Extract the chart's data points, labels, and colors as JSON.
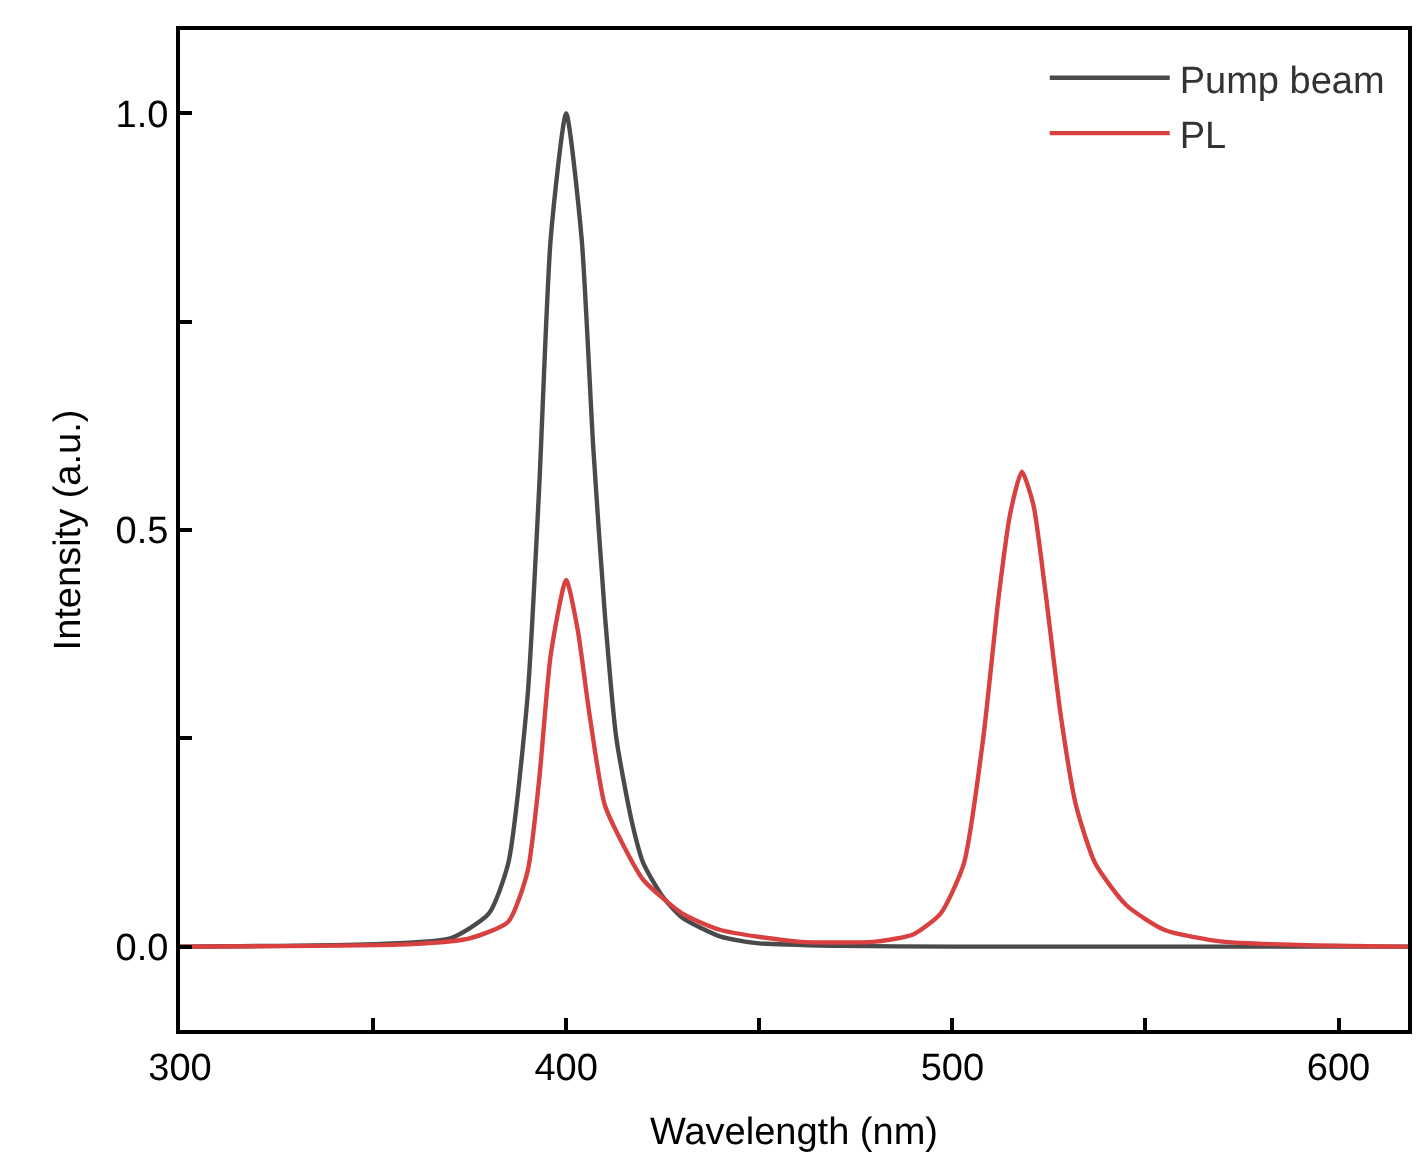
{
  "chart_data": {
    "type": "line",
    "xlabel": "Wavelength (nm)",
    "ylabel": "Intensity (a.u.)",
    "xlim": [
      300,
      618
    ],
    "ylim": [
      -0.1,
      1.1
    ],
    "xticks": [
      300,
      {
        "value": 350,
        "label": null
      },
      400,
      {
        "value": 450,
        "label": null
      },
      500,
      {
        "value": 550,
        "label": null
      },
      600
    ],
    "yticks": [
      {
        "value": 0,
        "label": "0.0"
      },
      {
        "value": 0.25,
        "label": null
      },
      0.5,
      {
        "value": 0.75,
        "label": null
      },
      {
        "value": 1,
        "label": "1.0"
      }
    ],
    "legend": "top right",
    "marker": "none",
    "line_style": "solid",
    "series": [
      {
        "name": "Pump beam",
        "color": "#4a4a4a",
        "x": [
          300,
          350,
          370,
          380,
          385,
          390,
          393,
          396,
          400,
          404,
          407,
          410,
          413,
          417,
          420,
          425,
          430,
          440,
          450,
          470,
          500,
          618
        ],
        "values": [
          0,
          0.003,
          0.01,
          0.04,
          0.1,
          0.3,
          0.55,
          0.85,
          1.0,
          0.85,
          0.6,
          0.4,
          0.25,
          0.15,
          0.1,
          0.06,
          0.035,
          0.012,
          0.004,
          0.001,
          0,
          0
        ]
      },
      {
        "name": "PL",
        "color": "#d94040",
        "x": [
          300,
          360,
          375,
          385,
          390,
          393,
          396,
          400,
          403,
          406,
          410,
          415,
          420,
          430,
          440,
          460,
          480,
          490,
          497,
          503,
          508,
          512,
          515,
          518,
          521,
          524,
          528,
          532,
          537,
          545,
          555,
          570,
          590,
          618
        ],
        "values": [
          0,
          0.003,
          0.01,
          0.03,
          0.09,
          0.2,
          0.35,
          0.44,
          0.38,
          0.28,
          0.17,
          0.12,
          0.08,
          0.04,
          0.02,
          0.006,
          0.006,
          0.015,
          0.04,
          0.1,
          0.25,
          0.42,
          0.52,
          0.57,
          0.53,
          0.43,
          0.28,
          0.17,
          0.1,
          0.05,
          0.02,
          0.006,
          0.002,
          0
        ]
      }
    ]
  }
}
